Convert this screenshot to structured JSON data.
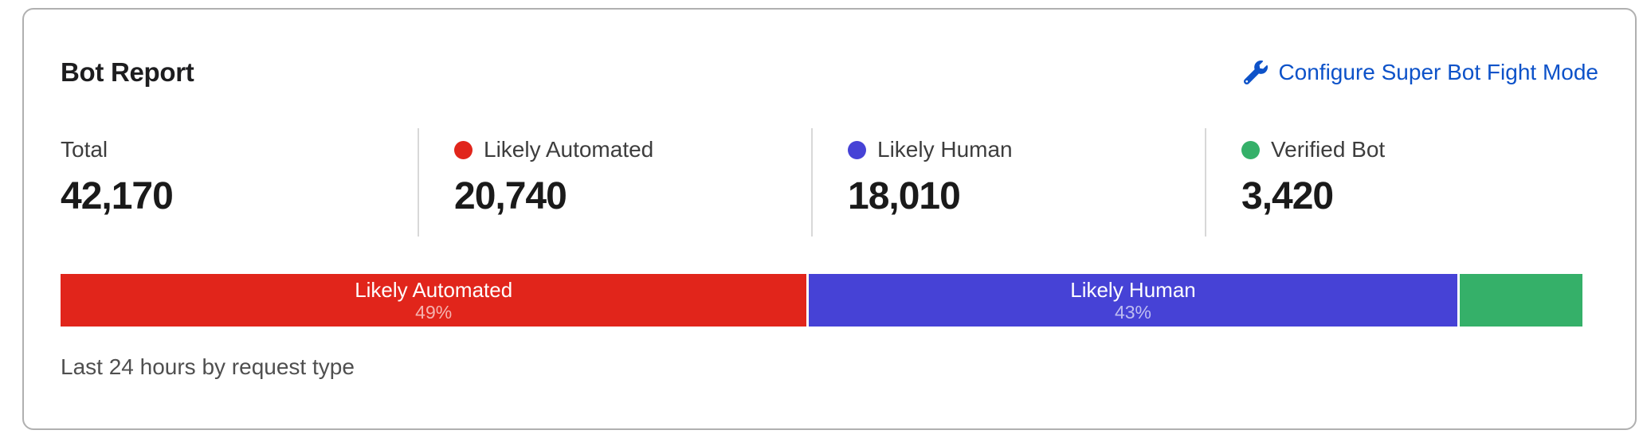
{
  "card": {
    "title": "Bot Report",
    "configure_link": {
      "label": "Configure Super Bot Fight Mode",
      "color": "#0d52c9",
      "icon": "wrench-icon"
    },
    "stats": [
      {
        "label": "Total",
        "value": "42,170"
      },
      {
        "label": "Likely Automated",
        "value": "20,740",
        "dot_color": "#e1251b"
      },
      {
        "label": "Likely Human",
        "value": "18,010",
        "dot_color": "#4642d6"
      },
      {
        "label": "Verified Bot",
        "value": "3,420",
        "dot_color": "#35b069"
      }
    ],
    "footer": "Last 24 hours by request type"
  },
  "chart_data": {
    "type": "bar",
    "subtype": "stacked-horizontal",
    "title": "Bot Report",
    "caption": "Last 24 hours by request type",
    "total": 42170,
    "categories": [
      "Likely Automated",
      "Likely Human",
      "Verified Bot"
    ],
    "values": [
      20740,
      18010,
      3420
    ],
    "segments": [
      {
        "name": "Likely Automated",
        "value": 20740,
        "percent": 49.18,
        "percent_label": "49%",
        "color": "#e1251b",
        "show_label": true
      },
      {
        "name": "Likely Human",
        "value": 18010,
        "percent": 42.71,
        "percent_label": "43%",
        "color": "#4642d6",
        "show_label": true
      },
      {
        "name": "Verified Bot",
        "value": 3420,
        "percent": 8.11,
        "percent_label": "8%",
        "color": "#35b069",
        "show_label": false
      }
    ],
    "colors": {
      "likely_automated": "#e1251b",
      "likely_human": "#4642d6",
      "verified_bot": "#35b069"
    },
    "legend_position": "none",
    "grid": false
  }
}
